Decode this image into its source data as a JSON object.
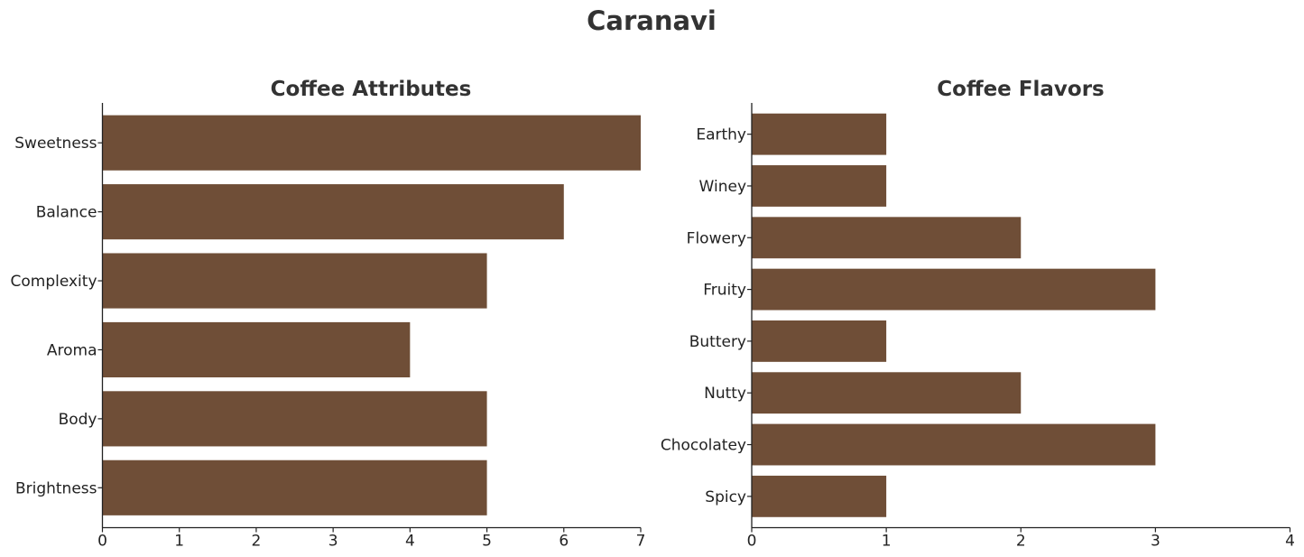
{
  "figure_title": "Caranavi",
  "chart_data": [
    {
      "type": "bar",
      "orientation": "horizontal",
      "title": "Coffee Attributes",
      "xlabel": "",
      "ylabel": "",
      "categories": [
        "Sweetness",
        "Balance",
        "Complexity",
        "Aroma",
        "Body",
        "Brightness"
      ],
      "values": [
        7,
        6,
        5,
        4,
        5,
        5
      ],
      "xlim": [
        0,
        7
      ],
      "xticks": [
        0,
        1,
        2,
        3,
        4,
        5,
        6,
        7
      ],
      "bar_color": "#6f4e37",
      "grid": false
    },
    {
      "type": "bar",
      "orientation": "horizontal",
      "title": "Coffee Flavors",
      "xlabel": "",
      "ylabel": "",
      "categories": [
        "Earthy",
        "Winey",
        "Flowery",
        "Fruity",
        "Buttery",
        "Nutty",
        "Chocolatey",
        "Spicy"
      ],
      "values": [
        1,
        1,
        2,
        3,
        1,
        2,
        3,
        1
      ],
      "xlim": [
        0,
        4
      ],
      "xticks": [
        0,
        1,
        2,
        3,
        4
      ],
      "bar_color": "#6f4e37",
      "grid": false
    }
  ]
}
